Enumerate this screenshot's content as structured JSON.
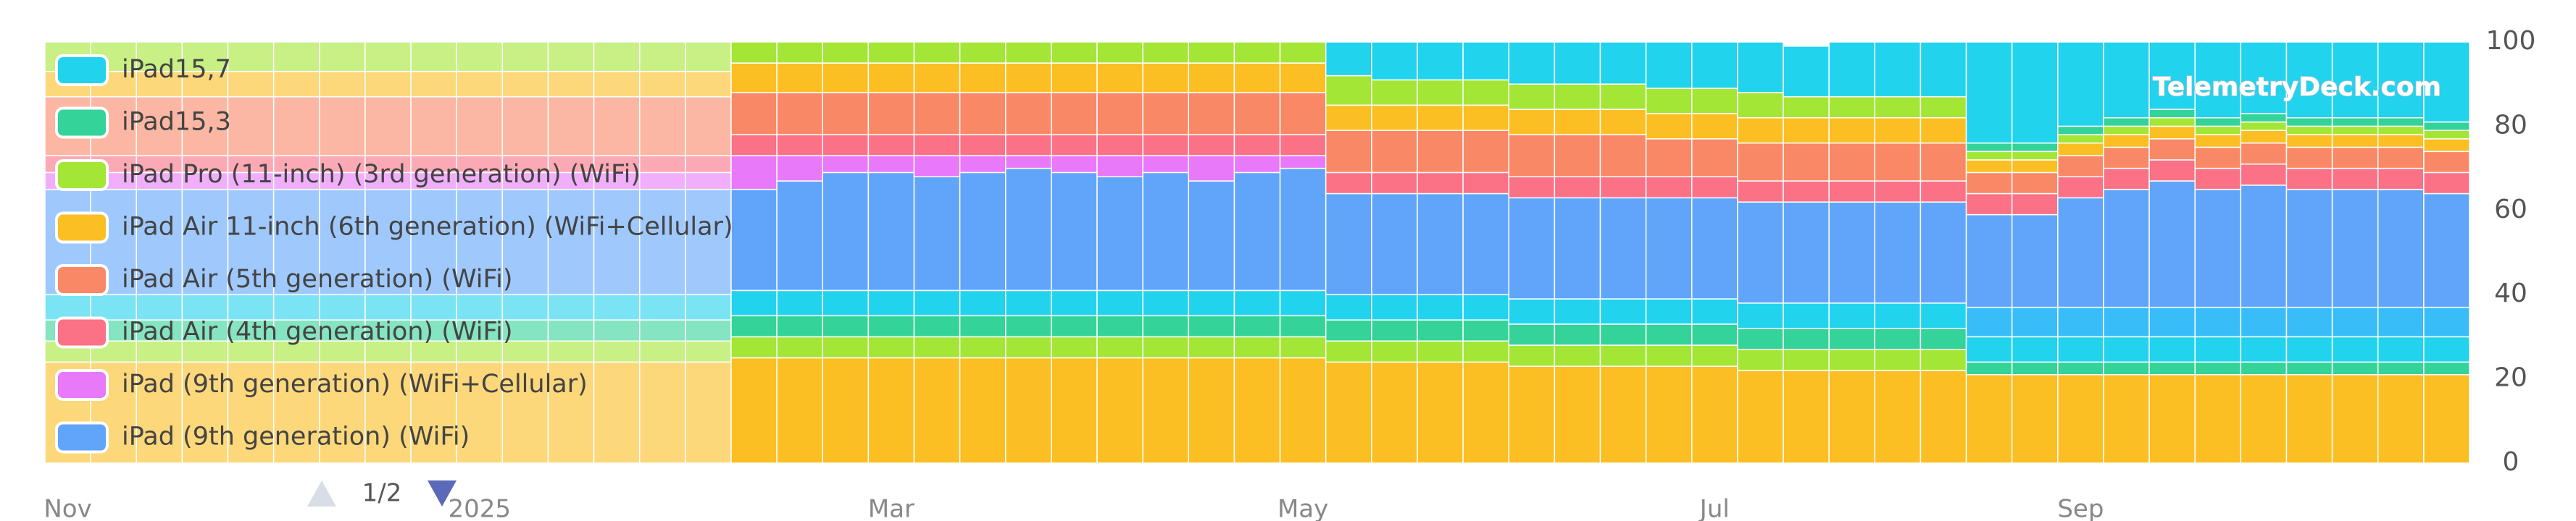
{
  "chart_data": {
    "type": "stacked_bar",
    "watermark": "TelemetryDeck.com",
    "legend_page": "1/2",
    "categories": [
      "Nov",
      null,
      null,
      null,
      null,
      null,
      null,
      null,
      null,
      "2025",
      null,
      null,
      null,
      null,
      null,
      null,
      null,
      null,
      "Mar",
      null,
      null,
      null,
      null,
      null,
      null,
      null,
      null,
      "May",
      null,
      null,
      null,
      null,
      null,
      null,
      null,
      null,
      "Jul",
      null,
      null,
      null,
      null,
      null,
      null,
      null,
      "Sep",
      null,
      null,
      null,
      null,
      null,
      null,
      null,
      null
    ],
    "ylim": [
      0,
      100
    ],
    "yticks": [
      0,
      20,
      40,
      60,
      80,
      100
    ],
    "grid": false,
    "series": [
      {
        "color": "#fbbf24",
        "values": [
          24,
          24,
          24,
          24,
          24,
          24,
          24,
          24,
          24,
          24,
          24,
          24,
          24,
          24,
          24,
          25,
          25,
          25,
          25,
          25,
          25,
          25,
          25,
          25,
          25,
          25,
          25,
          25,
          24,
          24,
          24,
          24,
          23,
          23,
          23,
          23,
          23,
          22,
          22,
          22,
          22,
          22,
          21,
          21,
          21,
          21,
          21,
          21,
          21,
          21,
          21,
          21,
          21
        ]
      },
      {
        "color": "#a3e635",
        "values": [
          5,
          5,
          5,
          5,
          5,
          5,
          5,
          5,
          5,
          5,
          5,
          5,
          5,
          5,
          5,
          5,
          5,
          5,
          5,
          5,
          5,
          5,
          5,
          5,
          5,
          5,
          5,
          5,
          5,
          5,
          5,
          5,
          5,
          5,
          5,
          5,
          5,
          5,
          5,
          5,
          5,
          5,
          0,
          0,
          0,
          0,
          0,
          0,
          0,
          0,
          0,
          0,
          0
        ]
      },
      {
        "color": "#34d399",
        "values": [
          5,
          5,
          5,
          5,
          5,
          5,
          5,
          5,
          5,
          5,
          5,
          5,
          5,
          5,
          5,
          5,
          5,
          5,
          5,
          5,
          5,
          5,
          5,
          5,
          5,
          5,
          5,
          5,
          5,
          5,
          5,
          5,
          5,
          5,
          5,
          5,
          5,
          5,
          5,
          5,
          5,
          5,
          3,
          3,
          3,
          3,
          3,
          3,
          3,
          3,
          3,
          3,
          3
        ]
      },
      {
        "color": "#22d3ee",
        "values": [
          6,
          6,
          6,
          6,
          6,
          6,
          6,
          6,
          6,
          6,
          6,
          6,
          6,
          6,
          6,
          6,
          6,
          6,
          6,
          6,
          6,
          6,
          6,
          6,
          6,
          6,
          6,
          6,
          6,
          6,
          6,
          6,
          6,
          6,
          6,
          6,
          6,
          6,
          6,
          6,
          6,
          6,
          6,
          6,
          6,
          6,
          6,
          6,
          6,
          6,
          6,
          6,
          6
        ]
      },
      {
        "color": "#38bdf8",
        "values": [
          0,
          0,
          0,
          0,
          0,
          0,
          0,
          0,
          0,
          0,
          0,
          0,
          0,
          0,
          0,
          0,
          0,
          0,
          0,
          0,
          0,
          0,
          0,
          0,
          0,
          0,
          0,
          0,
          0,
          0,
          0,
          0,
          0,
          0,
          0,
          0,
          0,
          0,
          0,
          0,
          0,
          0,
          7,
          7,
          7,
          7,
          7,
          7,
          7,
          7,
          7,
          7,
          7
        ]
      },
      {
        "name": "iPad (9th generation) (WiFi)",
        "color": "#60a5fa",
        "values": [
          25,
          25,
          25,
          25,
          25,
          25,
          25,
          25,
          25,
          25,
          25,
          25,
          25,
          25,
          25,
          24,
          26,
          28,
          28,
          27,
          28,
          29,
          28,
          27,
          28,
          26,
          28,
          29,
          24,
          24,
          24,
          24,
          24,
          24,
          24,
          24,
          24,
          24,
          24,
          24,
          24,
          24,
          22,
          22,
          26,
          28,
          30,
          28,
          29,
          28,
          28,
          28,
          27
        ]
      },
      {
        "name": "iPad (9th generation) (WiFi+Cellular)",
        "color": "#e879f9",
        "values": [
          4,
          4,
          4,
          4,
          4,
          4,
          4,
          4,
          4,
          4,
          4,
          4,
          4,
          4,
          4,
          8,
          6,
          4,
          4,
          5,
          4,
          3,
          4,
          5,
          4,
          6,
          4,
          3,
          0,
          0,
          0,
          0,
          0,
          0,
          0,
          0,
          0,
          0,
          0,
          0,
          0,
          0,
          0,
          0,
          0,
          0,
          0,
          0,
          0,
          0,
          0,
          0,
          0
        ]
      },
      {
        "name": "iPad Air (4th generation) (WiFi)",
        "color": "#fb7185",
        "values": [
          4,
          4,
          4,
          4,
          4,
          4,
          4,
          4,
          4,
          4,
          4,
          4,
          4,
          4,
          4,
          5,
          5,
          5,
          5,
          5,
          5,
          5,
          5,
          5,
          5,
          5,
          5,
          5,
          5,
          5,
          5,
          5,
          5,
          5,
          5,
          5,
          5,
          5,
          5,
          5,
          5,
          5,
          5,
          5,
          5,
          5,
          5,
          5,
          5,
          5,
          5,
          5,
          5
        ]
      },
      {
        "name": "iPad Air (5th generation) (WiFi)",
        "color": "#f98866",
        "values": [
          14,
          14,
          14,
          14,
          14,
          14,
          14,
          14,
          14,
          14,
          14,
          14,
          14,
          14,
          14,
          10,
          10,
          10,
          10,
          10,
          10,
          10,
          10,
          10,
          10,
          10,
          10,
          10,
          10,
          10,
          10,
          10,
          10,
          10,
          10,
          9,
          9,
          9,
          9,
          9,
          9,
          9,
          5,
          5,
          5,
          5,
          5,
          5,
          5,
          5,
          5,
          5,
          5
        ]
      },
      {
        "name": "iPad Air 11-inch (6th generation) (WiFi+Cellular)",
        "color": "#fbbf24",
        "values": [
          6,
          6,
          6,
          6,
          6,
          6,
          6,
          6,
          6,
          6,
          6,
          6,
          6,
          6,
          6,
          7,
          7,
          7,
          7,
          7,
          7,
          7,
          7,
          7,
          7,
          7,
          7,
          7,
          6,
          6,
          6,
          6,
          6,
          6,
          6,
          6,
          6,
          6,
          6,
          6,
          6,
          6,
          3,
          3,
          3,
          3,
          3,
          3,
          3,
          3,
          3,
          3,
          3
        ]
      },
      {
        "name": "iPad Pro (11-inch) (3rd generation) (WiFi)",
        "color": "#a3e635",
        "values": [
          7,
          7,
          7,
          7,
          7,
          7,
          7,
          7,
          7,
          7,
          7,
          7,
          7,
          7,
          7,
          5,
          5,
          5,
          5,
          5,
          5,
          5,
          5,
          5,
          5,
          5,
          5,
          5,
          7,
          6,
          6,
          6,
          6,
          6,
          6,
          6,
          6,
          6,
          5,
          5,
          5,
          5,
          2,
          2,
          2,
          2,
          2,
          2,
          2,
          2,
          2,
          2,
          2
        ]
      },
      {
        "name": "iPad15,3",
        "color": "#34d399",
        "values": [
          0,
          0,
          0,
          0,
          0,
          0,
          0,
          0,
          0,
          0,
          0,
          0,
          0,
          0,
          0,
          0,
          0,
          0,
          0,
          0,
          0,
          0,
          0,
          0,
          0,
          0,
          0,
          0,
          0,
          0,
          0,
          0,
          0,
          0,
          0,
          0,
          0,
          0,
          0,
          0,
          0,
          0,
          2,
          2,
          2,
          2,
          2,
          2,
          2,
          2,
          2,
          2,
          2
        ]
      },
      {
        "name": "iPad15,7",
        "color": "#22d3ee",
        "values": [
          0,
          0,
          0,
          0,
          0,
          0,
          0,
          0,
          0,
          0,
          0,
          0,
          0,
          0,
          0,
          0,
          0,
          0,
          0,
          0,
          0,
          0,
          0,
          0,
          0,
          0,
          0,
          0,
          8,
          9,
          9,
          9,
          10,
          10,
          10,
          11,
          11,
          12,
          12,
          13,
          13,
          13,
          24,
          24,
          20,
          18,
          16,
          18,
          17,
          18,
          18,
          18,
          19
        ]
      }
    ]
  }
}
